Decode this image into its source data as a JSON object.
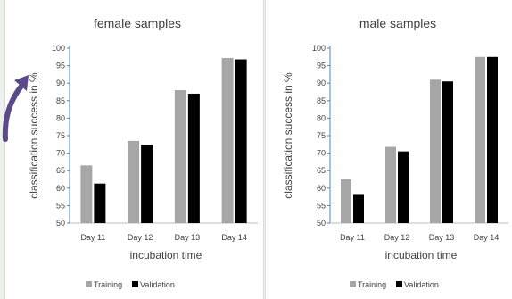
{
  "colors": {
    "training": "#a6a6a6",
    "validation": "#000000",
    "axis": "#4a86c8",
    "arrow": "#5a4a8a",
    "page_background": "#eef0ee"
  },
  "icons": [
    "curved-arrow-icon"
  ],
  "chart_data": [
    {
      "type": "bar",
      "title": "female samples",
      "xlabel": "incubation time",
      "ylabel": "classification success in %",
      "categories": [
        "Day 11",
        "Day 12",
        "Day 13",
        "Day 14"
      ],
      "ylim": [
        50,
        100
      ],
      "yticks": [
        "50",
        "55",
        "60",
        "65",
        "70",
        "75",
        "80",
        "85",
        "90",
        "95",
        "100"
      ],
      "grid": false,
      "legend_position": "bottom",
      "series": [
        {
          "name": "Training",
          "color": "#a6a6a6",
          "values": [
            66.5,
            73.5,
            88,
            97.2
          ]
        },
        {
          "name": "Validation",
          "color": "#000000",
          "values": [
            61.3,
            72.4,
            87,
            96.8
          ]
        }
      ]
    },
    {
      "type": "bar",
      "title": "male samples",
      "xlabel": "incubation time",
      "ylabel": "classification success in %",
      "categories": [
        "Day 11",
        "Day 12",
        "Day 13",
        "Day 14"
      ],
      "ylim": [
        50,
        100
      ],
      "yticks": [
        "50",
        "55",
        "60",
        "65",
        "70",
        "75",
        "80",
        "85",
        "90",
        "95",
        "100"
      ],
      "grid": false,
      "legend_position": "bottom",
      "series": [
        {
          "name": "Training",
          "color": "#a6a6a6",
          "values": [
            62.5,
            71.8,
            91,
            97.5
          ]
        },
        {
          "name": "Validation",
          "color": "#000000",
          "values": [
            58.3,
            70.5,
            90.5,
            97.5
          ]
        }
      ]
    }
  ]
}
